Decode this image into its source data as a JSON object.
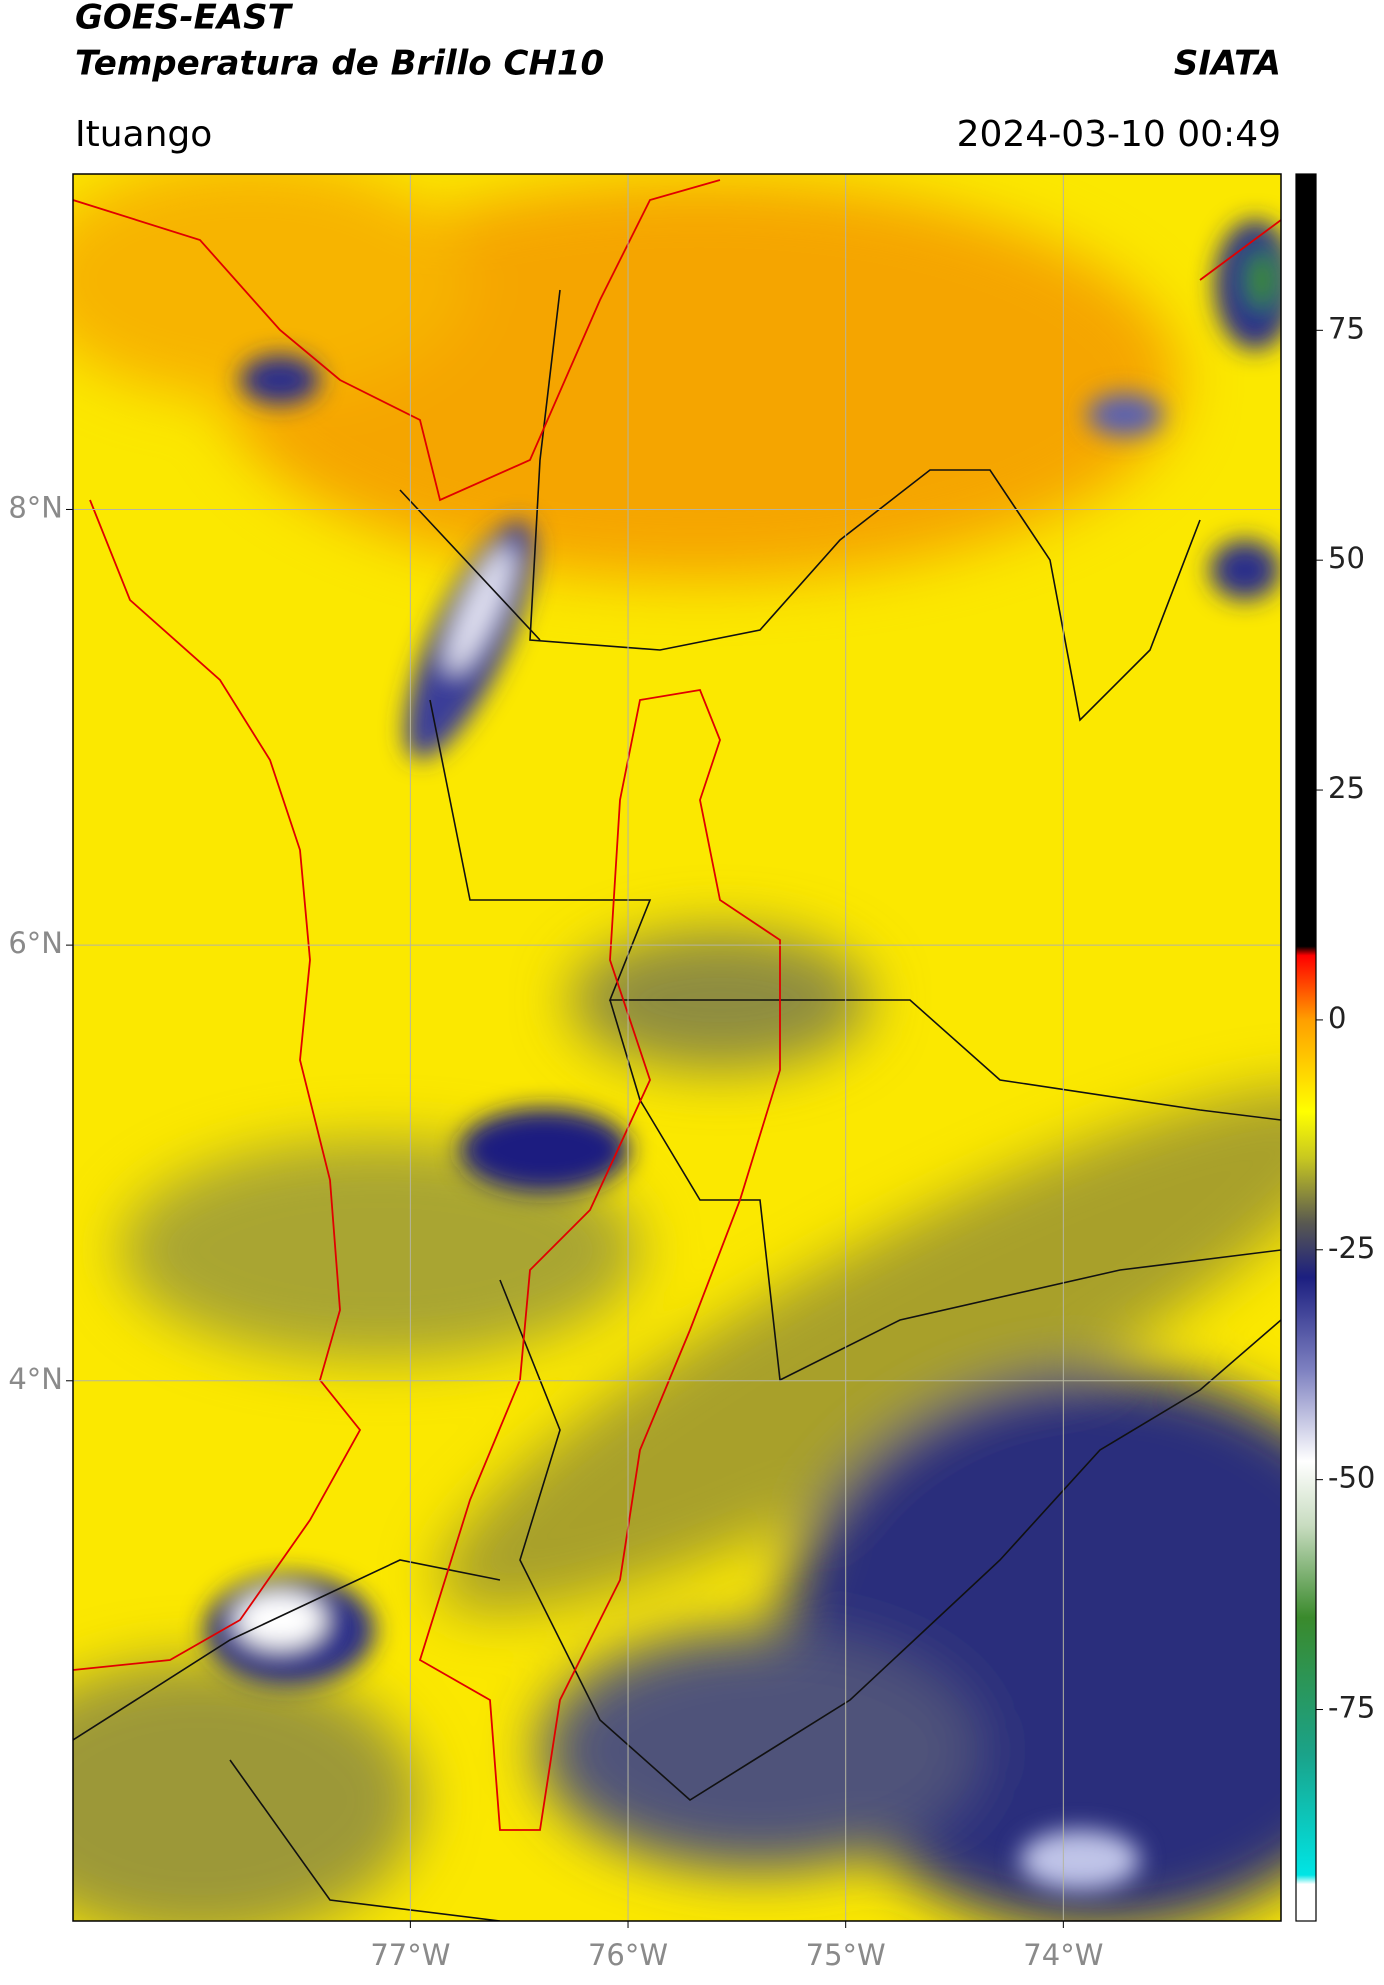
{
  "header": {
    "title": "GOES-EAST",
    "subtitle": "Temperatura de Brillo CH10",
    "source": "SIATA",
    "region": "Ituango",
    "datetime": "2024-03-10 00:49"
  },
  "map": {
    "latlim": [
      1.52,
      9.54
    ],
    "lonlim": [
      -78.55,
      -73.0
    ],
    "latticks": [
      {
        "value": 4,
        "label": "4°N"
      },
      {
        "value": 6,
        "label": "6°N"
      },
      {
        "value": 8,
        "label": "8°N"
      }
    ],
    "lonticks": [
      {
        "value": -77,
        "label": "77°W"
      },
      {
        "value": -76,
        "label": "76°W"
      },
      {
        "value": -75,
        "label": "75°W"
      },
      {
        "value": -74,
        "label": "74°W"
      }
    ],
    "grid": true,
    "grid_color": "#b5b5a0"
  },
  "colorbar": {
    "lim": [
      -98,
      92
    ],
    "ticks": [
      -75,
      -50,
      -25,
      0,
      25,
      50,
      75
    ],
    "stops": [
      {
        "value": -98,
        "color": "#ffffff"
      },
      {
        "value": -94,
        "color": "#ffffff"
      },
      {
        "value": -93,
        "color": "#00e5e5"
      },
      {
        "value": -80,
        "color": "#1aa38a"
      },
      {
        "value": -65,
        "color": "#3a8a2c"
      },
      {
        "value": -55,
        "color": "#c8dcc0"
      },
      {
        "value": -48,
        "color": "#ffffff"
      },
      {
        "value": -38,
        "color": "#7d80c0"
      },
      {
        "value": -28,
        "color": "#1c1f80"
      },
      {
        "value": -22,
        "color": "#5a5a50"
      },
      {
        "value": -15,
        "color": "#c8c820"
      },
      {
        "value": -10,
        "color": "#ffff00"
      },
      {
        "value": 0,
        "color": "#ff9f00"
      },
      {
        "value": 7,
        "color": "#ff0000"
      },
      {
        "value": 8,
        "color": "#000000"
      },
      {
        "value": 92,
        "color": "#000000"
      }
    ]
  }
}
